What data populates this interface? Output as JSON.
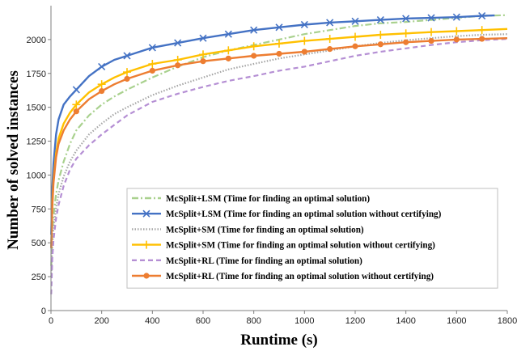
{
  "chart_data": {
    "type": "line",
    "title": "",
    "xlabel": "Runtime (s)",
    "ylabel": "Number of solved instances",
    "xlim": [
      0,
      1800
    ],
    "ylim": [
      0,
      2250
    ],
    "xticks": [
      0,
      200,
      400,
      600,
      800,
      1000,
      1200,
      1400,
      1600,
      1800
    ],
    "yticks": [
      0,
      250,
      500,
      750,
      1000,
      1250,
      1500,
      1750,
      2000
    ],
    "grid": false,
    "legend_position": "bottom-right",
    "series": [
      {
        "name": "McSplit+LSM (Time for finding an optimal solution)",
        "color": "#a9d18e",
        "dash": "dashdot",
        "marker": "none",
        "points": [
          [
            1,
            330
          ],
          [
            5,
            560
          ],
          [
            10,
            700
          ],
          [
            20,
            860
          ],
          [
            30,
            960
          ],
          [
            50,
            1100
          ],
          [
            75,
            1230
          ],
          [
            100,
            1330
          ],
          [
            150,
            1440
          ],
          [
            200,
            1520
          ],
          [
            250,
            1580
          ],
          [
            300,
            1630
          ],
          [
            400,
            1720
          ],
          [
            500,
            1800
          ],
          [
            600,
            1870
          ],
          [
            700,
            1920
          ],
          [
            800,
            1960
          ],
          [
            900,
            2000
          ],
          [
            1000,
            2040
          ],
          [
            1100,
            2070
          ],
          [
            1200,
            2100
          ],
          [
            1300,
            2120
          ],
          [
            1400,
            2130
          ],
          [
            1500,
            2145
          ],
          [
            1600,
            2160
          ],
          [
            1700,
            2175
          ],
          [
            1800,
            2180
          ]
        ]
      },
      {
        "name": "McSplit+LSM (Time for finding an optimal solution without certifying)",
        "color": "#4472c4",
        "dash": "solid",
        "marker": "x",
        "points": [
          [
            1,
            560
          ],
          [
            5,
            900
          ],
          [
            10,
            1080
          ],
          [
            20,
            1300
          ],
          [
            30,
            1410
          ],
          [
            50,
            1520
          ],
          [
            75,
            1580
          ],
          [
            100,
            1630
          ],
          [
            150,
            1730
          ],
          [
            200,
            1800
          ],
          [
            250,
            1850
          ],
          [
            300,
            1880
          ],
          [
            400,
            1940
          ],
          [
            500,
            1975
          ],
          [
            600,
            2010
          ],
          [
            700,
            2040
          ],
          [
            800,
            2070
          ],
          [
            900,
            2090
          ],
          [
            1000,
            2110
          ],
          [
            1100,
            2125
          ],
          [
            1200,
            2135
          ],
          [
            1300,
            2145
          ],
          [
            1400,
            2155
          ],
          [
            1500,
            2160
          ],
          [
            1600,
            2165
          ],
          [
            1700,
            2175
          ],
          [
            1750,
            2178
          ]
        ]
      },
      {
        "name": "McSplit+SM (Time for finding an optimal solution)",
        "color": "#a5a5a5",
        "dash": "dotted",
        "marker": "none",
        "points": [
          [
            1,
            250
          ],
          [
            5,
            480
          ],
          [
            10,
            600
          ],
          [
            20,
            760
          ],
          [
            30,
            860
          ],
          [
            50,
            990
          ],
          [
            75,
            1100
          ],
          [
            100,
            1180
          ],
          [
            150,
            1300
          ],
          [
            200,
            1380
          ],
          [
            250,
            1450
          ],
          [
            300,
            1500
          ],
          [
            400,
            1590
          ],
          [
            500,
            1660
          ],
          [
            600,
            1720
          ],
          [
            700,
            1780
          ],
          [
            800,
            1820
          ],
          [
            900,
            1860
          ],
          [
            1000,
            1890
          ],
          [
            1100,
            1920
          ],
          [
            1200,
            1950
          ],
          [
            1300,
            1975
          ],
          [
            1400,
            1995
          ],
          [
            1500,
            2010
          ],
          [
            1600,
            2025
          ],
          [
            1700,
            2035
          ],
          [
            1800,
            2040
          ]
        ]
      },
      {
        "name": "McSplit+SM (Time for finding an optimal solution without certifying)",
        "color": "#ffc000",
        "dash": "solid",
        "marker": "plus",
        "points": [
          [
            1,
            470
          ],
          [
            5,
            780
          ],
          [
            10,
            960
          ],
          [
            20,
            1160
          ],
          [
            30,
            1270
          ],
          [
            50,
            1380
          ],
          [
            75,
            1460
          ],
          [
            100,
            1520
          ],
          [
            150,
            1610
          ],
          [
            200,
            1670
          ],
          [
            250,
            1720
          ],
          [
            300,
            1760
          ],
          [
            400,
            1820
          ],
          [
            500,
            1850
          ],
          [
            600,
            1890
          ],
          [
            700,
            1920
          ],
          [
            800,
            1950
          ],
          [
            900,
            1970
          ],
          [
            1000,
            1990
          ],
          [
            1100,
            2005
          ],
          [
            1200,
            2020
          ],
          [
            1300,
            2035
          ],
          [
            1400,
            2045
          ],
          [
            1500,
            2055
          ],
          [
            1600,
            2062
          ],
          [
            1700,
            2070
          ],
          [
            1800,
            2078
          ]
        ]
      },
      {
        "name": "McSplit+RL (Time for finding an optimal solution)",
        "color": "#b58fd4",
        "dash": "dashed",
        "marker": "none",
        "points": [
          [
            1,
            120
          ],
          [
            5,
            380
          ],
          [
            10,
            520
          ],
          [
            20,
            680
          ],
          [
            30,
            780
          ],
          [
            50,
            920
          ],
          [
            75,
            1040
          ],
          [
            100,
            1120
          ],
          [
            150,
            1220
          ],
          [
            200,
            1300
          ],
          [
            250,
            1370
          ],
          [
            300,
            1440
          ],
          [
            400,
            1540
          ],
          [
            500,
            1600
          ],
          [
            600,
            1650
          ],
          [
            700,
            1695
          ],
          [
            800,
            1730
          ],
          [
            900,
            1770
          ],
          [
            1000,
            1800
          ],
          [
            1100,
            1840
          ],
          [
            1200,
            1880
          ],
          [
            1300,
            1910
          ],
          [
            1400,
            1935
          ],
          [
            1500,
            1960
          ],
          [
            1600,
            1980
          ],
          [
            1700,
            1995
          ],
          [
            1800,
            2005
          ]
        ]
      },
      {
        "name": "McSplit+RL (Time for finding an optimal solution without certifying)",
        "color": "#ed7d31",
        "dash": "solid",
        "marker": "circle",
        "points": [
          [
            1,
            460
          ],
          [
            5,
            760
          ],
          [
            10,
            940
          ],
          [
            20,
            1130
          ],
          [
            30,
            1230
          ],
          [
            50,
            1330
          ],
          [
            75,
            1410
          ],
          [
            100,
            1470
          ],
          [
            150,
            1560
          ],
          [
            200,
            1620
          ],
          [
            250,
            1670
          ],
          [
            300,
            1710
          ],
          [
            400,
            1770
          ],
          [
            500,
            1810
          ],
          [
            600,
            1840
          ],
          [
            700,
            1860
          ],
          [
            800,
            1880
          ],
          [
            900,
            1895
          ],
          [
            1000,
            1910
          ],
          [
            1100,
            1930
          ],
          [
            1200,
            1950
          ],
          [
            1300,
            1965
          ],
          [
            1400,
            1980
          ],
          [
            1500,
            1990
          ],
          [
            1600,
            2000
          ],
          [
            1700,
            2005
          ],
          [
            1800,
            2010
          ]
        ]
      }
    ]
  }
}
